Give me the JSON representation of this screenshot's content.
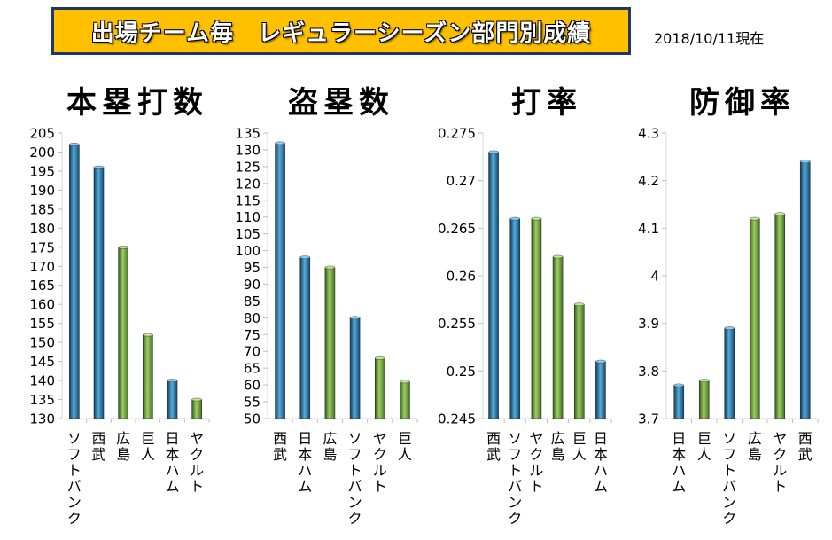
{
  "header": {
    "title": "出場チーム毎　レギュラーシーズン部門別成績",
    "as_of": "2018/10/11現在"
  },
  "colors": {
    "blue": "#1f77b4",
    "green": "#70ad47",
    "axis": "#d9d9d9"
  },
  "chart_data": [
    {
      "type": "bar",
      "title": "本塁打数",
      "categories": [
        "ソフトバンク",
        "西武",
        "広島",
        "巨人",
        "日本ハム",
        "ヤクルト"
      ],
      "values": [
        202,
        196,
        175,
        152,
        140,
        135
      ],
      "bar_colors": [
        "blue",
        "blue",
        "green",
        "green",
        "blue",
        "green"
      ],
      "ylim": [
        130,
        205
      ],
      "yticks": [
        "130",
        "135",
        "140",
        "145",
        "150",
        "155",
        "160",
        "165",
        "170",
        "175",
        "180",
        "185",
        "190",
        "195",
        "200",
        "205"
      ]
    },
    {
      "type": "bar",
      "title": "盗塁数",
      "categories": [
        "西武",
        "日本ハム",
        "広島",
        "ソフトバンク",
        "ヤクルト",
        "巨人"
      ],
      "values": [
        132,
        98,
        95,
        80,
        68,
        61
      ],
      "bar_colors": [
        "blue",
        "blue",
        "green",
        "blue",
        "green",
        "green"
      ],
      "ylim": [
        50,
        135
      ],
      "yticks": [
        "50",
        "55",
        "60",
        "65",
        "70",
        "75",
        "80",
        "85",
        "90",
        "95",
        "100",
        "105",
        "110",
        "115",
        "120",
        "125",
        "130",
        "135"
      ]
    },
    {
      "type": "bar",
      "title": "打率",
      "categories": [
        "西武",
        "ソフトバンク",
        "ヤクルト",
        "広島",
        "巨人",
        "日本ハム"
      ],
      "values": [
        0.273,
        0.266,
        0.266,
        0.262,
        0.257,
        0.251
      ],
      "bar_colors": [
        "blue",
        "blue",
        "green",
        "green",
        "green",
        "blue"
      ],
      "ylim": [
        0.245,
        0.275
      ],
      "yticks": [
        "0.245",
        "0.25",
        "0.255",
        "0.26",
        "0.265",
        "0.27",
        "0.275"
      ]
    },
    {
      "type": "bar",
      "title": "防御率",
      "categories": [
        "日本ハム",
        "巨人",
        "ソフトバンク",
        "広島",
        "ヤクルト",
        "西武"
      ],
      "values": [
        3.77,
        3.78,
        3.89,
        4.12,
        4.13,
        4.24
      ],
      "bar_colors": [
        "blue",
        "green",
        "blue",
        "green",
        "green",
        "blue"
      ],
      "ylim": [
        3.7,
        4.3
      ],
      "yticks": [
        "3.7",
        "3.8",
        "3.9",
        "4",
        "4.1",
        "4.2",
        "4.3"
      ]
    }
  ]
}
